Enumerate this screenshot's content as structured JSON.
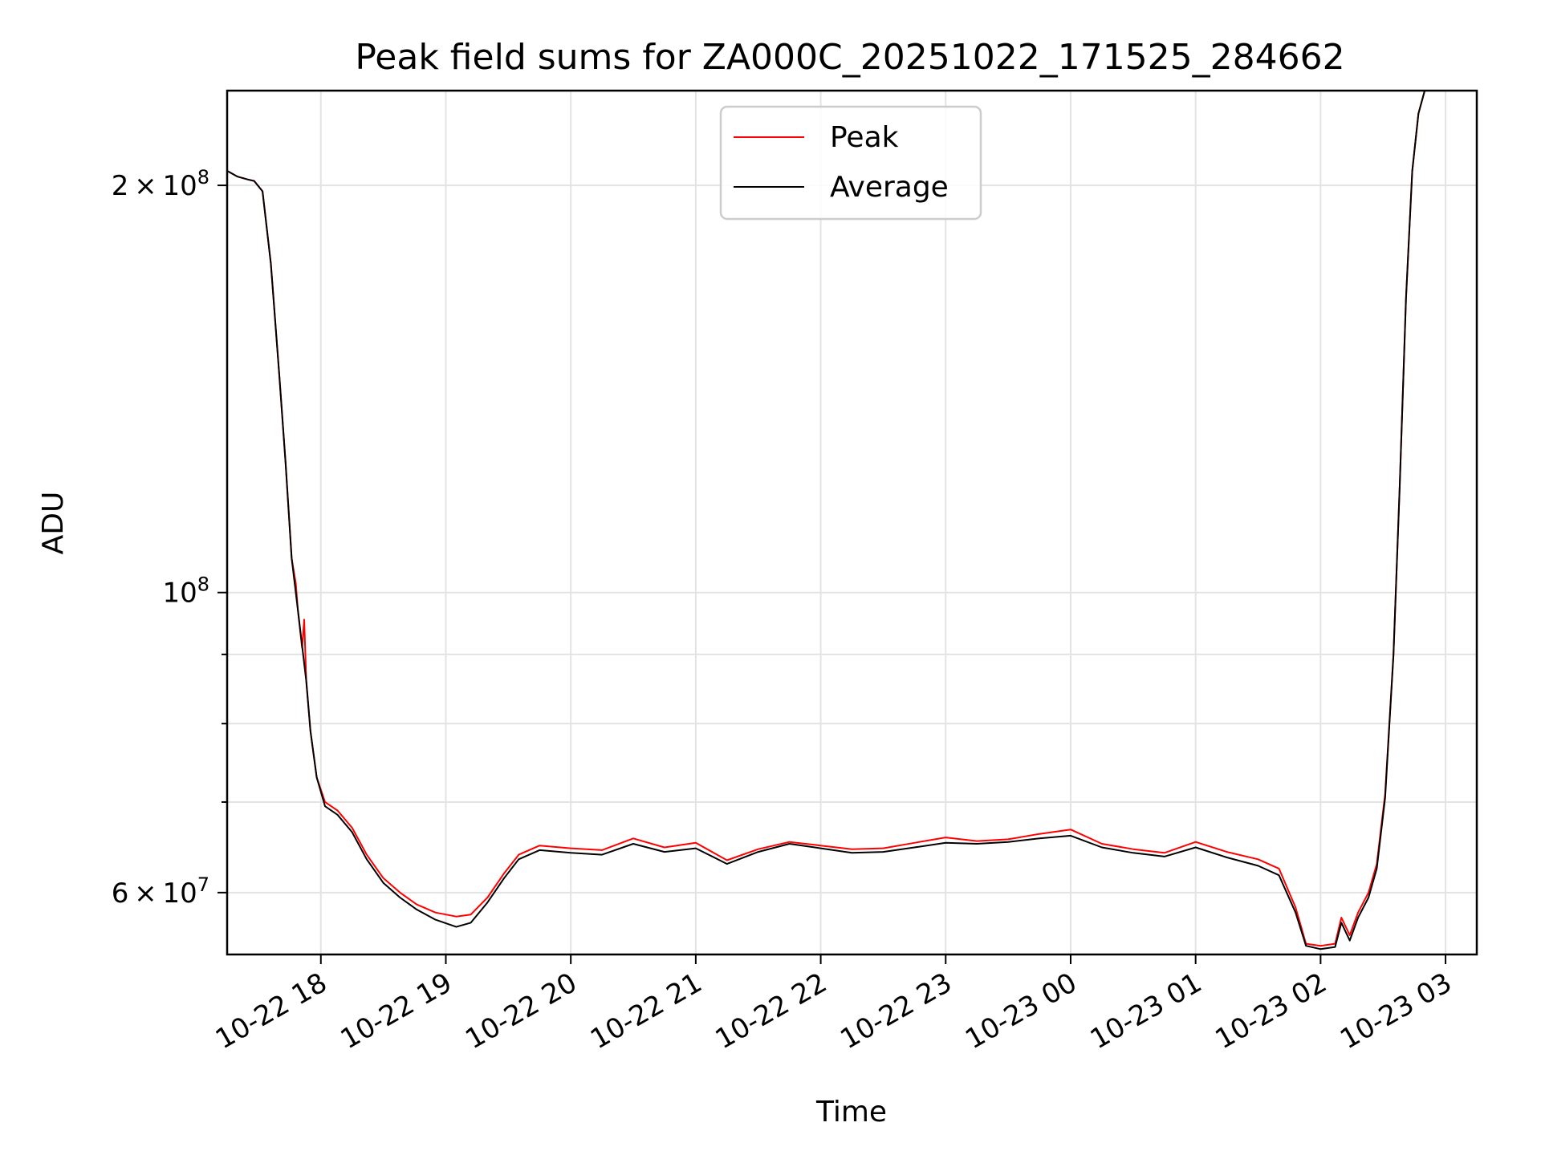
{
  "chart_data": {
    "type": "line",
    "title": "Peak field sums for ZA000C_20251022_171525_284662",
    "xlabel": "Time",
    "ylabel": "ADU",
    "yscale": "log",
    "xlim": [
      "2025-10-22 17:15",
      "2025-10-23 03:15"
    ],
    "ylim": [
      54000000,
      235000000
    ],
    "grid": true,
    "legend_position": "top-center",
    "x_ticks": [
      {
        "value": "2025-10-22 18:00",
        "label": "10-22 18"
      },
      {
        "value": "2025-10-22 19:00",
        "label": "10-22 19"
      },
      {
        "value": "2025-10-22 20:00",
        "label": "10-22 20"
      },
      {
        "value": "2025-10-22 21:00",
        "label": "10-22 21"
      },
      {
        "value": "2025-10-22 22:00",
        "label": "10-22 22"
      },
      {
        "value": "2025-10-22 23:00",
        "label": "10-22 23"
      },
      {
        "value": "2025-10-23 00:00",
        "label": "10-23 00"
      },
      {
        "value": "2025-10-23 01:00",
        "label": "10-23 01"
      },
      {
        "value": "2025-10-23 02:00",
        "label": "10-23 02"
      },
      {
        "value": "2025-10-23 03:00",
        "label": "10-23 03"
      }
    ],
    "y_major_ticks": [
      {
        "value": 60000000,
        "mantissa": "6",
        "exponent": "7"
      },
      {
        "value": 100000000,
        "mantissa": "",
        "exponent": "8"
      },
      {
        "value": 200000000,
        "mantissa": "2",
        "exponent": "8"
      }
    ],
    "y_minor_ticks": [
      70000000,
      80000000,
      90000000
    ],
    "series": [
      {
        "name": "Peak",
        "color": "#ff0000",
        "points": [
          [
            "2025-10-22 17:15",
            205000000
          ],
          [
            "2025-10-22 17:20",
            203000000
          ],
          [
            "2025-10-22 17:25",
            202000000
          ],
          [
            "2025-10-22 17:28",
            201500000
          ],
          [
            "2025-10-22 17:32",
            198000000
          ],
          [
            "2025-10-22 17:36",
            175000000
          ],
          [
            "2025-10-22 17:40",
            145000000
          ],
          [
            "2025-10-22 17:43",
            125000000
          ],
          [
            "2025-10-22 17:46",
            106000000
          ],
          [
            "2025-10-22 17:48",
            101500000
          ],
          [
            "2025-10-22 17:49",
            97000000
          ],
          [
            "2025-10-22 17:51",
            91000000
          ],
          [
            "2025-10-22 17:52",
            95500000
          ],
          [
            "2025-10-22 17:53",
            86000000
          ],
          [
            "2025-10-22 17:55",
            79000000
          ],
          [
            "2025-10-22 17:58",
            73000000
          ],
          [
            "2025-10-22 18:02",
            70000000
          ],
          [
            "2025-10-22 18:08",
            69000000
          ],
          [
            "2025-10-22 18:15",
            67000000
          ],
          [
            "2025-10-22 18:22",
            64000000
          ],
          [
            "2025-10-22 18:30",
            61500000
          ],
          [
            "2025-10-22 18:38",
            60000000
          ],
          [
            "2025-10-22 18:46",
            58800000
          ],
          [
            "2025-10-22 18:55",
            58000000
          ],
          [
            "2025-10-22 19:05",
            57600000
          ],
          [
            "2025-10-22 19:12",
            57800000
          ],
          [
            "2025-10-22 19:20",
            59500000
          ],
          [
            "2025-10-22 19:28",
            62000000
          ],
          [
            "2025-10-22 19:35",
            64000000
          ],
          [
            "2025-10-22 19:45",
            65000000
          ],
          [
            "2025-10-22 20:00",
            64700000
          ],
          [
            "2025-10-22 20:15",
            64500000
          ],
          [
            "2025-10-22 20:30",
            65800000
          ],
          [
            "2025-10-22 20:45",
            64800000
          ],
          [
            "2025-10-22 21:00",
            65300000
          ],
          [
            "2025-10-22 21:15",
            63400000
          ],
          [
            "2025-10-22 21:30",
            64600000
          ],
          [
            "2025-10-22 21:45",
            65400000
          ],
          [
            "2025-10-22 22:00",
            65000000
          ],
          [
            "2025-10-22 22:15",
            64600000
          ],
          [
            "2025-10-22 22:30",
            64700000
          ],
          [
            "2025-10-22 22:45",
            65300000
          ],
          [
            "2025-10-22 23:00",
            65900000
          ],
          [
            "2025-10-22 23:15",
            65500000
          ],
          [
            "2025-10-22 23:30",
            65700000
          ],
          [
            "2025-10-22 23:45",
            66300000
          ],
          [
            "2025-10-23 00:00",
            66800000
          ],
          [
            "2025-10-23 00:15",
            65200000
          ],
          [
            "2025-10-23 00:30",
            64600000
          ],
          [
            "2025-10-23 00:45",
            64200000
          ],
          [
            "2025-10-23 01:00",
            65400000
          ],
          [
            "2025-10-23 01:15",
            64300000
          ],
          [
            "2025-10-23 01:30",
            63500000
          ],
          [
            "2025-10-23 01:40",
            62500000
          ],
          [
            "2025-10-23 01:48",
            58500000
          ],
          [
            "2025-10-23 01:53",
            55000000
          ],
          [
            "2025-10-23 02:00",
            54800000
          ],
          [
            "2025-10-23 02:07",
            55000000
          ],
          [
            "2025-10-23 02:10",
            57500000
          ],
          [
            "2025-10-23 02:14",
            55800000
          ],
          [
            "2025-10-23 02:18",
            58000000
          ],
          [
            "2025-10-23 02:23",
            60000000
          ],
          [
            "2025-10-23 02:27",
            63000000
          ],
          [
            "2025-10-23 02:31",
            71000000
          ],
          [
            "2025-10-23 02:35",
            90000000
          ],
          [
            "2025-10-23 02:38",
            120000000
          ],
          [
            "2025-10-23 02:41",
            165000000
          ],
          [
            "2025-10-23 02:44",
            205000000
          ],
          [
            "2025-10-23 02:47",
            226000000
          ],
          [
            "2025-10-23 02:50",
            235000000
          ]
        ]
      },
      {
        "name": "Average",
        "color": "#000000",
        "points": [
          [
            "2025-10-22 17:15",
            205000000
          ],
          [
            "2025-10-22 17:20",
            203000000
          ],
          [
            "2025-10-22 17:25",
            202000000
          ],
          [
            "2025-10-22 17:28",
            201500000
          ],
          [
            "2025-10-22 17:32",
            198000000
          ],
          [
            "2025-10-22 17:36",
            175000000
          ],
          [
            "2025-10-22 17:40",
            145000000
          ],
          [
            "2025-10-22 17:43",
            125000000
          ],
          [
            "2025-10-22 17:46",
            106000000
          ],
          [
            "2025-10-22 17:49",
            97000000
          ],
          [
            "2025-10-22 17:53",
            86000000
          ],
          [
            "2025-10-22 17:55",
            79000000
          ],
          [
            "2025-10-22 17:58",
            73000000
          ],
          [
            "2025-10-22 18:02",
            69500000
          ],
          [
            "2025-10-22 18:08",
            68500000
          ],
          [
            "2025-10-22 18:15",
            66500000
          ],
          [
            "2025-10-22 18:22",
            63500000
          ],
          [
            "2025-10-22 18:30",
            61000000
          ],
          [
            "2025-10-22 18:38",
            59500000
          ],
          [
            "2025-10-22 18:46",
            58300000
          ],
          [
            "2025-10-22 18:55",
            57300000
          ],
          [
            "2025-10-22 19:05",
            56600000
          ],
          [
            "2025-10-22 19:12",
            57000000
          ],
          [
            "2025-10-22 19:20",
            59000000
          ],
          [
            "2025-10-22 19:28",
            61500000
          ],
          [
            "2025-10-22 19:35",
            63500000
          ],
          [
            "2025-10-22 19:45",
            64500000
          ],
          [
            "2025-10-22 20:00",
            64200000
          ],
          [
            "2025-10-22 20:15",
            64000000
          ],
          [
            "2025-10-22 20:30",
            65200000
          ],
          [
            "2025-10-22 20:45",
            64300000
          ],
          [
            "2025-10-22 21:00",
            64700000
          ],
          [
            "2025-10-22 21:15",
            63000000
          ],
          [
            "2025-10-22 21:30",
            64300000
          ],
          [
            "2025-10-22 21:45",
            65200000
          ],
          [
            "2025-10-22 22:00",
            64700000
          ],
          [
            "2025-10-22 22:15",
            64200000
          ],
          [
            "2025-10-22 22:30",
            64300000
          ],
          [
            "2025-10-22 22:45",
            64800000
          ],
          [
            "2025-10-22 23:00",
            65300000
          ],
          [
            "2025-10-22 23:15",
            65200000
          ],
          [
            "2025-10-22 23:30",
            65400000
          ],
          [
            "2025-10-22 23:45",
            65800000
          ],
          [
            "2025-10-23 00:00",
            66100000
          ],
          [
            "2025-10-23 00:15",
            64800000
          ],
          [
            "2025-10-23 00:30",
            64200000
          ],
          [
            "2025-10-23 00:45",
            63800000
          ],
          [
            "2025-10-23 01:00",
            64800000
          ],
          [
            "2025-10-23 01:15",
            63700000
          ],
          [
            "2025-10-23 01:30",
            62800000
          ],
          [
            "2025-10-23 01:40",
            61800000
          ],
          [
            "2025-10-23 01:48",
            58000000
          ],
          [
            "2025-10-23 01:53",
            54800000
          ],
          [
            "2025-10-23 02:00",
            54500000
          ],
          [
            "2025-10-23 02:07",
            54700000
          ],
          [
            "2025-10-23 02:10",
            57000000
          ],
          [
            "2025-10-23 02:14",
            55300000
          ],
          [
            "2025-10-23 02:18",
            57500000
          ],
          [
            "2025-10-23 02:23",
            59500000
          ],
          [
            "2025-10-23 02:27",
            62500000
          ],
          [
            "2025-10-23 02:31",
            70500000
          ],
          [
            "2025-10-23 02:35",
            90000000
          ],
          [
            "2025-10-23 02:38",
            120000000
          ],
          [
            "2025-10-23 02:41",
            165000000
          ],
          [
            "2025-10-23 02:44",
            205000000
          ],
          [
            "2025-10-23 02:47",
            226000000
          ],
          [
            "2025-10-23 02:50",
            235000000
          ]
        ]
      }
    ]
  }
}
